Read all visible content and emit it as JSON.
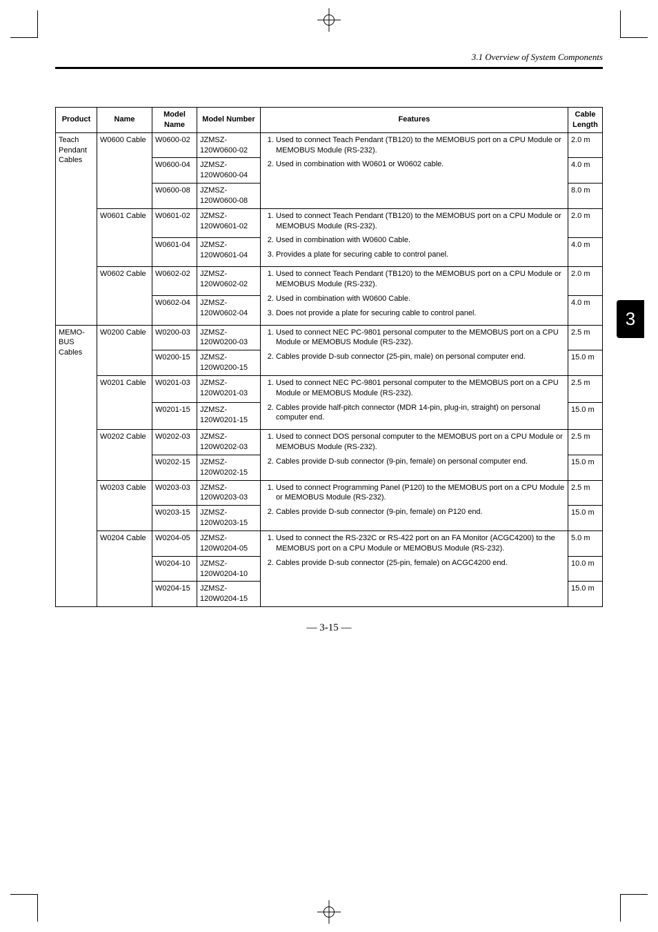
{
  "header": {
    "section": "3.1 Overview of System Components"
  },
  "sideTab": "3",
  "pageNumber": "— 3-15 —",
  "table": {
    "headers": {
      "product": "Product",
      "name": "Name",
      "modelName": "Model Name",
      "modelNumber": "Model Number",
      "features": "Features",
      "cableLength": "Cable Length"
    },
    "groups": [
      {
        "product": "Teach Pendant Cables",
        "cables": [
          {
            "name": "W0600 Cable",
            "feature1": "Used to connect Teach Pendant (TB120) to the MEMOBUS port on a CPU Module or MEMOBUS Module (RS-232).",
            "feature2": "Used in combination with W0601 or W0602 cable.",
            "models": [
              {
                "modelName": "W0600-02",
                "modelNumber": "JZMSZ-120W0600-02",
                "length": "2.0 m"
              },
              {
                "modelName": "W0600-04",
                "modelNumber": "JZMSZ-120W0600-04",
                "length": "4.0 m"
              },
              {
                "modelName": "W0600-08",
                "modelNumber": "JZMSZ-120W0600-08",
                "length": "8.0 m"
              }
            ]
          },
          {
            "name": "W0601 Cable",
            "feature1": "Used to connect Teach Pendant (TB120) to the MEMOBUS port on a CPU Module or MEMOBUS Module (RS-232).",
            "feature2": "Used in combination with W0600 Cable.",
            "feature3": "Provides a plate for securing cable to control panel.",
            "models": [
              {
                "modelName": "W0601-02",
                "modelNumber": "JZMSZ-120W0601-02",
                "length": "2.0 m"
              },
              {
                "modelName": "W0601-04",
                "modelNumber": "JZMSZ-120W0601-04",
                "length": "4.0 m"
              }
            ]
          },
          {
            "name": "W0602 Cable",
            "feature1": "Used to connect Teach Pendant (TB120) to the MEMOBUS port on a CPU Module or MEMOBUS Module (RS-232).",
            "feature2": "Used in combination with W0600 Cable.",
            "feature3": "Does not provide a plate for securing cable to control panel.",
            "models": [
              {
                "modelName": "W0602-02",
                "modelNumber": "JZMSZ-120W0602-02",
                "length": "2.0 m"
              },
              {
                "modelName": "W0602-04",
                "modelNumber": "JZMSZ-120W0602-04",
                "length": "4.0 m"
              }
            ]
          }
        ]
      },
      {
        "product": "MEMO-BUS Cables",
        "cables": [
          {
            "name": "W0200 Cable",
            "feature1": "Used to connect NEC PC-9801 personal computer to the MEMOBUS port on a CPU Module or MEMOBUS Module (RS-232).",
            "feature2": "Cables provide D-sub connector (25-pin, male) on personal computer end.",
            "models": [
              {
                "modelName": "W0200-03",
                "modelNumber": "JZMSZ-120W0200-03",
                "length": "2.5 m"
              },
              {
                "modelName": "W0200-15",
                "modelNumber": "JZMSZ-120W0200-15",
                "length": "15.0 m"
              }
            ]
          },
          {
            "name": "W0201 Cable",
            "feature1": "Used to connect NEC PC-9801 personal computer to the MEMOBUS port on a CPU Module or MEMOBUS Module (RS-232).",
            "feature2": "Cables provide half-pitch connector (MDR 14-pin, plug-in, straight) on personal computer end.",
            "models": [
              {
                "modelName": "W0201-03",
                "modelNumber": "JZMSZ-120W0201-03",
                "length": "2.5 m"
              },
              {
                "modelName": "W0201-15",
                "modelNumber": "JZMSZ-120W0201-15",
                "length": "15.0 m"
              }
            ]
          },
          {
            "name": "W0202 Cable",
            "feature1": "Used to connect DOS personal computer to the MEMOBUS port on a CPU Module or MEMOBUS Module (RS-232).",
            "feature2": "Cables provide D-sub connector (9-pin, female) on personal computer end.",
            "models": [
              {
                "modelName": "W0202-03",
                "modelNumber": "JZMSZ-120W0202-03",
                "length": "2.5 m"
              },
              {
                "modelName": "W0202-15",
                "modelNumber": "JZMSZ-120W0202-15",
                "length": "15.0 m"
              }
            ]
          },
          {
            "name": "W0203 Cable",
            "feature1": "Used to connect Programming Panel (P120) to the MEMOBUS port on a CPU Module or MEMOBUS Module (RS-232).",
            "feature2": "Cables provide D-sub connector (9-pin, female) on P120 end.",
            "models": [
              {
                "modelName": "W0203-03",
                "modelNumber": "JZMSZ-120W0203-03",
                "length": "2.5 m"
              },
              {
                "modelName": "W0203-15",
                "modelNumber": "JZMSZ-120W0203-15",
                "length": "15.0 m"
              }
            ]
          },
          {
            "name": "W0204 Cable",
            "feature1": "Used to connect the RS-232C or RS-422 port on an FA Monitor (ACGC4200) to the MEMOBUS port on a CPU Module or MEMOBUS Module (RS-232).",
            "feature2": "Cables provide D-sub connector (25-pin, female) on ACGC4200 end.",
            "models": [
              {
                "modelName": "W0204-05",
                "modelNumber": "JZMSZ-120W0204-05",
                "length": "5.0 m"
              },
              {
                "modelName": "W0204-10",
                "modelNumber": "JZMSZ-120W0204-10",
                "length": "10.0 m"
              },
              {
                "modelName": "W0204-15",
                "modelNumber": "JZMSZ-120W0204-15",
                "length": "15.0 m"
              }
            ]
          }
        ]
      }
    ]
  }
}
